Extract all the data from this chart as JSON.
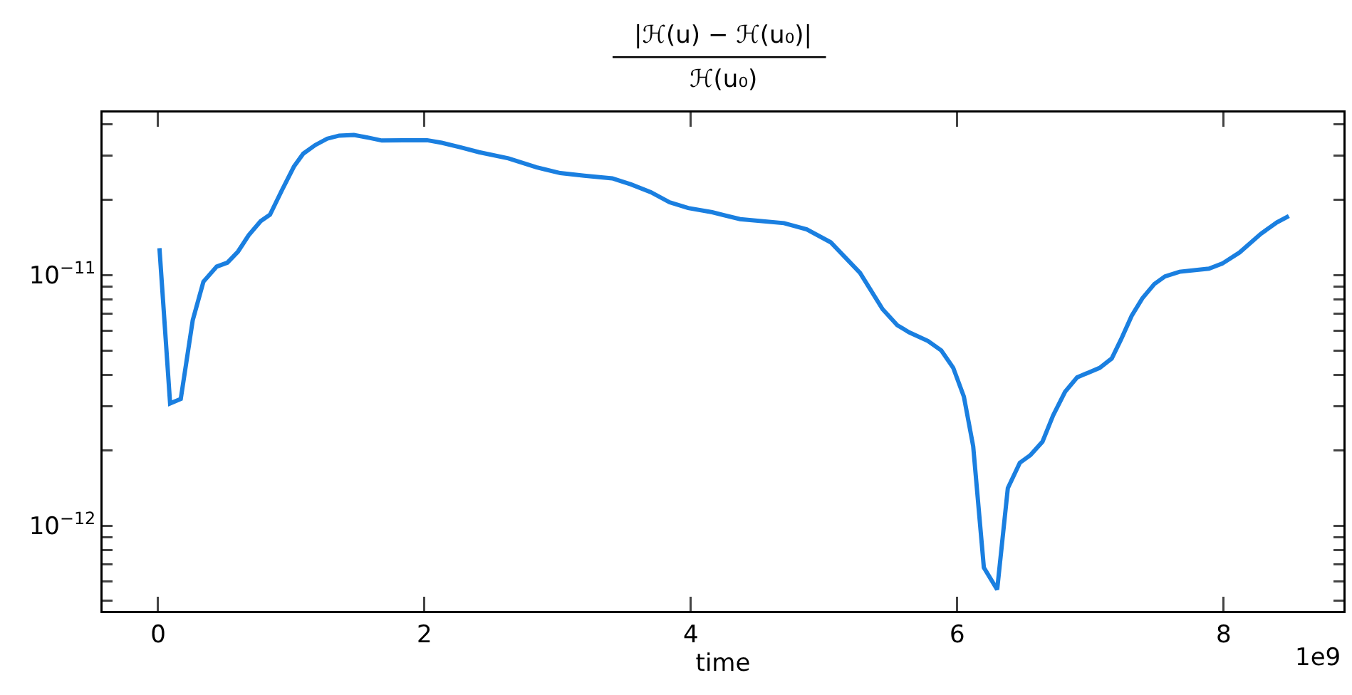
{
  "chart_data": {
    "type": "line",
    "title": "|ℋ(u) − ℋ(u₀)|",
    "subtitle": "ℋ(u₀)",
    "xlabel": "time",
    "annotations": [
      "1e9"
    ],
    "log": "y",
    "grid": false,
    "marker": "none",
    "line_style": "solid",
    "xlim": [
      -0.417,
      8.9
    ],
    "xticks": [
      0,
      2,
      4,
      6,
      8
    ],
    "ylim": [
      4.56e-13,
      4.45e-11
    ],
    "yticks": [
      {
        "value": 5e-13,
        "label": null
      },
      {
        "value": 6e-13,
        "label": null
      },
      {
        "value": 7e-13,
        "label": null
      },
      {
        "value": 8e-13,
        "label": null
      },
      {
        "value": 9e-13,
        "label": null
      },
      {
        "value": 1e-12,
        "label": "10$^{−12}$"
      },
      {
        "value": 2e-12,
        "label": null
      },
      {
        "value": 3e-12,
        "label": null
      },
      {
        "value": 4e-12,
        "label": null
      },
      {
        "value": 5e-12,
        "label": null
      },
      {
        "value": 6e-12,
        "label": null
      },
      {
        "value": 7e-12,
        "label": null
      },
      {
        "value": 8e-12,
        "label": null
      },
      {
        "value": 9e-12,
        "label": null
      },
      {
        "value": 1e-11,
        "label": "10$^{−11}$"
      },
      {
        "value": 2e-11,
        "label": null
      },
      {
        "value": 3e-11,
        "label": null
      },
      {
        "value": 4e-11,
        "label": null
      }
    ],
    "x": [
      0.01,
      0.09,
      0.17,
      0.26,
      0.34,
      0.44,
      0.52,
      0.6,
      0.68,
      0.77,
      0.84,
      0.93,
      1.02,
      1.09,
      1.18,
      1.27,
      1.36,
      1.47,
      1.58,
      1.68,
      1.84,
      2.02,
      2.13,
      2.27,
      2.41,
      2.63,
      2.84,
      3.02,
      3.2,
      3.41,
      3.55,
      3.7,
      3.84,
      3.98,
      4.16,
      4.37,
      4.7,
      4.87,
      5.05,
      5.27,
      5.44,
      5.55,
      5.64,
      5.78,
      5.88,
      5.97,
      6.05,
      6.12,
      6.2,
      6.3,
      6.38,
      6.47,
      6.55,
      6.64,
      6.72,
      6.81,
      6.9,
      7.07,
      7.16,
      7.23,
      7.31,
      7.39,
      7.48,
      7.56,
      7.67,
      7.89,
      7.99,
      8.12,
      8.28,
      8.4,
      8.49
    ],
    "series": [
      {
        "color": "#1a7fe0",
        "values": [
          1.28e-11,
          3.07e-12,
          3.2e-12,
          6.6e-12,
          9.4e-12,
          1.08e-11,
          1.12e-11,
          1.24e-11,
          1.44e-11,
          1.64e-11,
          1.74e-11,
          2.18e-11,
          2.71e-11,
          3.05e-11,
          3.3e-11,
          3.5e-11,
          3.6e-11,
          3.62e-11,
          3.53e-11,
          3.44e-11,
          3.45e-11,
          3.45e-11,
          3.37e-11,
          3.23e-11,
          3.09e-11,
          2.92e-11,
          2.69e-11,
          2.55e-11,
          2.49e-11,
          2.43e-11,
          2.3e-11,
          2.14e-11,
          1.95e-11,
          1.85e-11,
          1.78e-11,
          1.67e-11,
          1.61e-11,
          1.52e-11,
          1.35e-11,
          1.02e-11,
          7.3e-12,
          6.3e-12,
          5.9e-12,
          5.45e-12,
          5e-12,
          4.26e-12,
          3.27e-12,
          2.07e-12,
          6.8e-13,
          5.55e-13,
          1.41e-12,
          1.78e-12,
          1.91e-12,
          2.16e-12,
          2.75e-12,
          3.42e-12,
          3.9e-12,
          4.26e-12,
          4.64e-12,
          5.53e-12,
          6.87e-12,
          8.07e-12,
          9.2e-12,
          9.87e-12,
          1.03e-11,
          1.06e-11,
          1.11e-11,
          1.23e-11,
          1.46e-11,
          1.62e-11,
          1.72e-11
        ]
      }
    ]
  }
}
